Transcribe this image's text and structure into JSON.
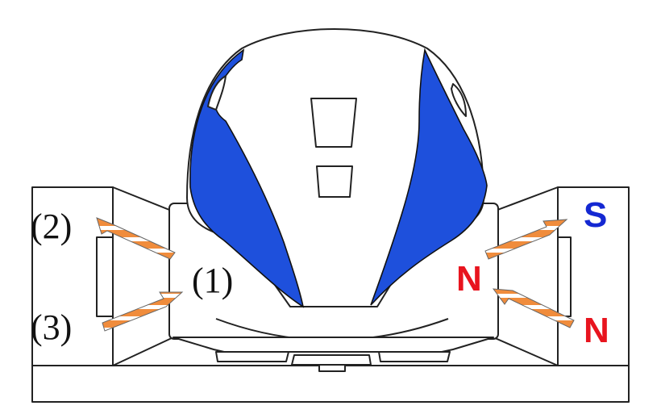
{
  "labels": {
    "num1": "(1)",
    "num2": "(2)",
    "num3": "(3)",
    "pole_s": "S",
    "pole_n_inner": "N",
    "pole_n_outer": "N"
  },
  "colors": {
    "body_blue": "#1e50dc",
    "pole_n": "#e8141e",
    "pole_s": "#1428d2",
    "arrow_fill": "#f08c3c"
  }
}
